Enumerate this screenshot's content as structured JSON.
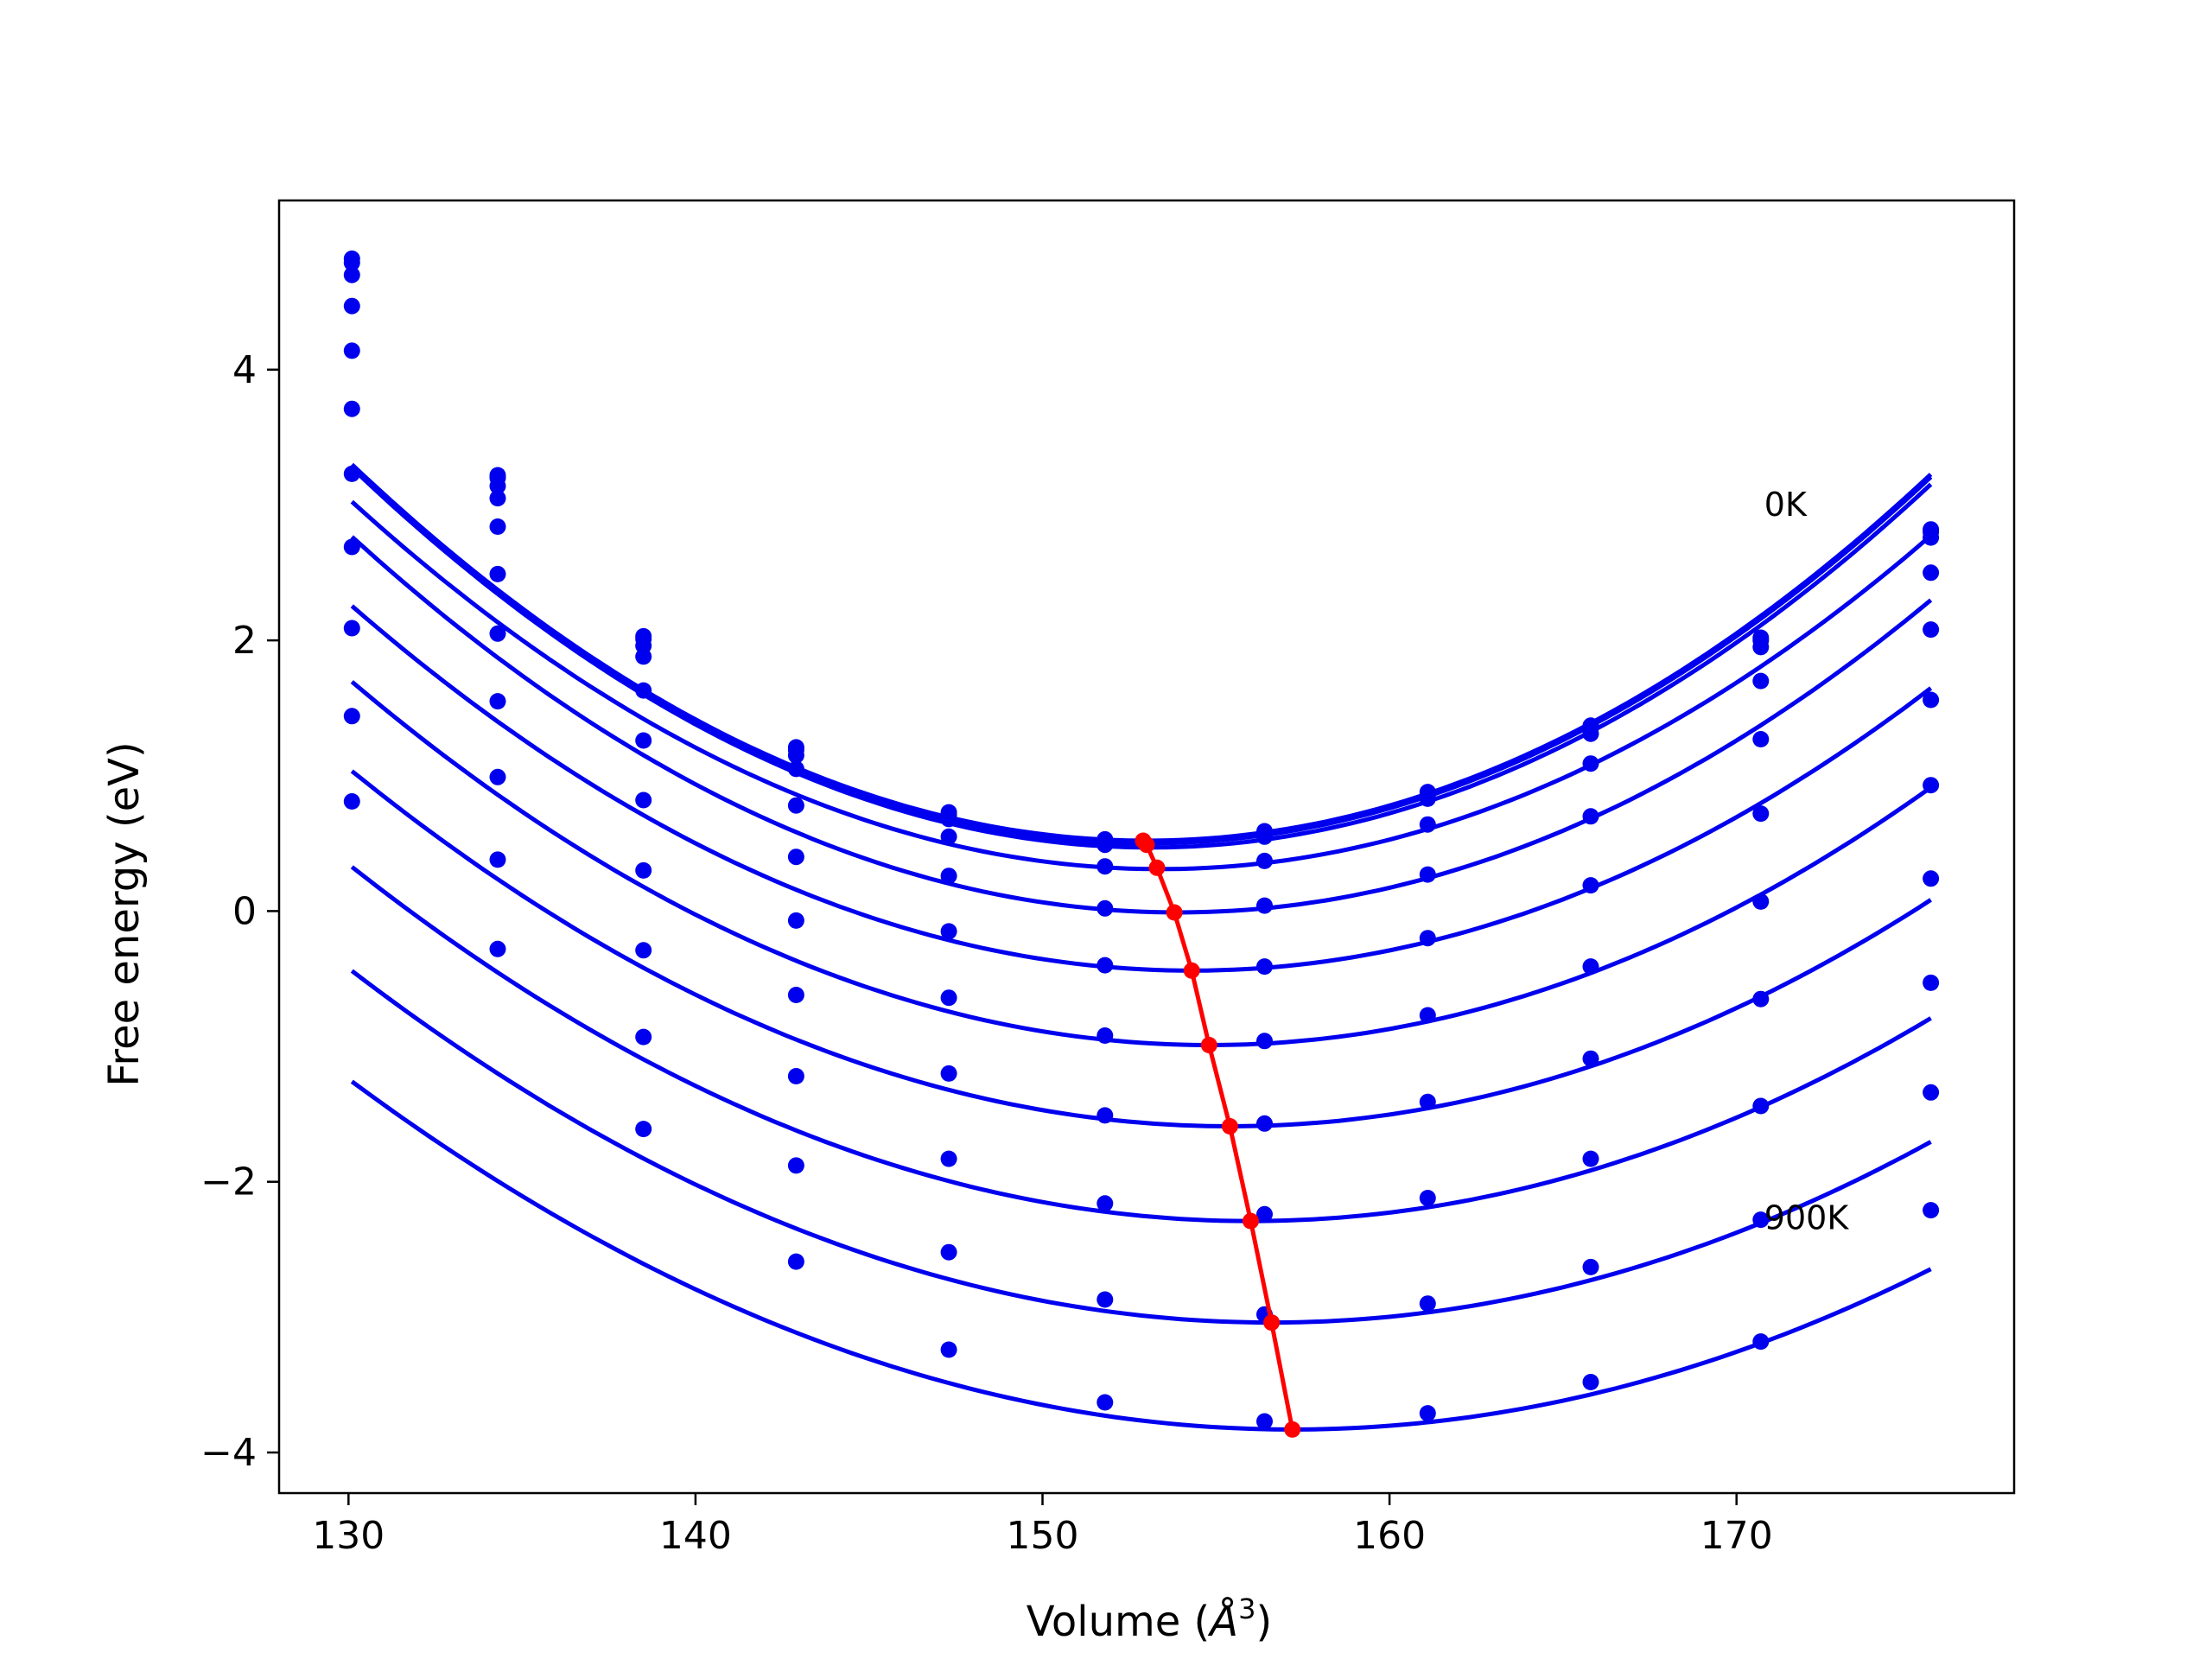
{
  "chart_data": {
    "type": "line",
    "xlabel": "Volume (",
    "xlabel_unit": "Å",
    "xlabel_exp": "3",
    "xlabel_close": ")",
    "ylabel": "Free energy (eV)",
    "xlim": [
      128,
      178
    ],
    "ylim": [
      -4.3,
      5.25
    ],
    "xticks": [
      130,
      140,
      150,
      160,
      170
    ],
    "yticks": [
      -4,
      -2,
      0,
      2,
      4
    ],
    "ytick_labels": [
      "−4",
      "−2",
      "0",
      "2",
      "4"
    ],
    "grid": false,
    "annotations": [
      {
        "text": "0K",
        "x": 170.8,
        "y": 2.92
      },
      {
        "text": "900K",
        "x": 170.8,
        "y": -2.35
      }
    ],
    "x": [
      130.1,
      134.3,
      138.5,
      142.9,
      147.3,
      151.8,
      156.4,
      161.1,
      165.8,
      170.7,
      175.6
    ],
    "colors": {
      "isotherm": "#0000ee",
      "minimum": "#ff0000"
    },
    "isotherms": [
      {
        "values": [
          4.82,
          3.22,
          2.03,
          1.21,
          0.73,
          0.53,
          0.59,
          0.88,
          1.37,
          2.02,
          2.82
        ],
        "fit": {
          "v0": 153.0,
          "emin": 0.52,
          "a": 0.0053
        }
      },
      {
        "values": [
          4.79,
          3.2,
          2.01,
          1.19,
          0.71,
          0.51,
          0.57,
          0.86,
          1.35,
          2.0,
          2.8
        ],
        "fit": {
          "v0": 153.0,
          "emin": 0.5,
          "a": 0.0053
        }
      },
      {
        "values": [
          4.7,
          3.14,
          1.96,
          1.15,
          0.68,
          0.49,
          0.55,
          0.83,
          1.31,
          1.95,
          2.76
        ],
        "fit": {
          "v0": 153.1,
          "emin": 0.47,
          "a": 0.0053
        }
      },
      {
        "values": [
          4.47,
          3.05,
          1.88,
          1.05,
          0.55,
          0.33,
          0.37,
          0.64,
          1.09,
          1.7,
          2.5
        ],
        "fit": {
          "v0": 153.4,
          "emin": 0.31,
          "a": 0.005
        }
      },
      {
        "values": [
          4.14,
          2.84,
          1.63,
          0.78,
          0.26,
          0.02,
          0.04,
          0.27,
          0.7,
          1.27,
          2.08
        ],
        "fit": {
          "v0": 153.9,
          "emin": -0.01,
          "a": 0.0049
        }
      },
      {
        "values": [
          3.71,
          2.49,
          1.26,
          0.4,
          -0.15,
          -0.4,
          -0.41,
          -0.2,
          0.19,
          0.72,
          1.56
        ],
        "fit": {
          "v0": 154.3,
          "emin": -0.44,
          "a": 0.0046
        }
      },
      {
        "values": [
          3.23,
          2.05,
          0.82,
          -0.07,
          -0.64,
          -0.92,
          -0.96,
          -0.77,
          -0.41,
          0.07,
          0.93
        ],
        "fit": {
          "v0": 154.8,
          "emin": -0.99,
          "a": 0.0044
        }
      },
      {
        "values": [
          2.69,
          1.55,
          0.3,
          -0.62,
          -1.2,
          -1.51,
          -1.57,
          -1.41,
          -1.09,
          -0.65,
          0.24
        ],
        "fit": {
          "v0": 155.4,
          "emin": -1.59,
          "a": 0.0041
        }
      },
      {
        "values": [
          2.09,
          0.99,
          -0.29,
          -1.22,
          -1.83,
          -2.16,
          -2.24,
          -2.12,
          -1.83,
          -1.44,
          -0.53
        ],
        "fit": {
          "v0": 156.0,
          "emin": -2.29,
          "a": 0.0039
        }
      },
      {
        "values": [
          1.44,
          0.38,
          -0.93,
          -1.88,
          -2.52,
          -2.87,
          -2.98,
          -2.9,
          -2.63,
          -2.28,
          -1.34
        ],
        "fit": {
          "v0": 156.6,
          "emin": -3.04,
          "a": 0.0037
        }
      },
      {
        "values": [
          0.81,
          -0.28,
          -1.61,
          -2.59,
          -3.24,
          -3.63,
          -3.77,
          -3.71,
          -3.48,
          -3.18,
          -2.21
        ],
        "fit": {
          "v0": 157.2,
          "emin": -3.83,
          "a": 0.0035
        }
      }
    ],
    "minimum_path": {
      "x": [
        152.9,
        153.0,
        153.3,
        153.8,
        154.3,
        154.8,
        155.4,
        156.0,
        156.6,
        157.2
      ],
      "y": [
        0.52,
        0.49,
        0.32,
        -0.01,
        -0.44,
        -0.99,
        -1.59,
        -2.29,
        -3.04,
        -3.83
      ]
    }
  }
}
